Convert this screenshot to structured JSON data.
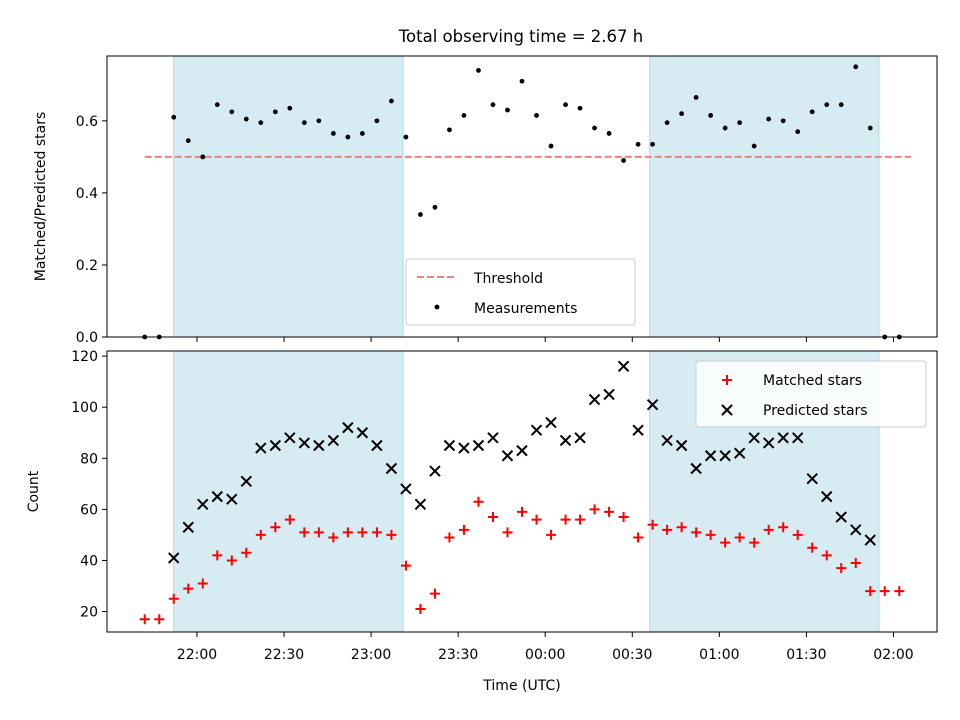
{
  "title": "Total observing time = 2.67 h",
  "colors": {
    "shade": "#add8e6",
    "threshold": "#f08080",
    "matched": "#ff0000",
    "predicted": "#000000",
    "measurement": "#000000"
  },
  "chart_data": [
    {
      "panel": "top",
      "type": "scatter",
      "title": "Total observing time = 2.67 h",
      "xlabel": "",
      "ylabel": "Matched/Predicted stars",
      "xlim": [
        "21:29",
        "02:15"
      ],
      "ylim": [
        0,
        0.78
      ],
      "yticks": [
        0.0,
        0.2,
        0.4,
        0.6
      ],
      "ytick_labels": [
        "0.0",
        "0.2",
        "0.4",
        "0.6"
      ],
      "xticks": [
        "22:00",
        "22:30",
        "23:00",
        "23:30",
        "00:00",
        "00:30",
        "01:00",
        "01:30",
        "02:00"
      ],
      "legend_position": "lower center",
      "threshold": {
        "name": "Threshold",
        "value": 0.5,
        "x_range": [
          "21:42",
          "02:06"
        ]
      },
      "shaded_intervals": [
        [
          "21:52",
          "23:11"
        ],
        [
          "00:36",
          "01:55"
        ]
      ],
      "series": [
        {
          "name": "Measurements",
          "points": [
            [
              "21:42",
              0.0
            ],
            [
              "21:47",
              0.0
            ],
            [
              "21:52",
              0.61
            ],
            [
              "21:57",
              0.545
            ],
            [
              "22:02",
              0.5
            ],
            [
              "22:07",
              0.645
            ],
            [
              "22:12",
              0.625
            ],
            [
              "22:17",
              0.605
            ],
            [
              "22:22",
              0.595
            ],
            [
              "22:27",
              0.625
            ],
            [
              "22:32",
              0.635
            ],
            [
              "22:37",
              0.595
            ],
            [
              "22:42",
              0.6
            ],
            [
              "22:47",
              0.565
            ],
            [
              "22:52",
              0.555
            ],
            [
              "22:57",
              0.565
            ],
            [
              "23:02",
              0.6
            ],
            [
              "23:07",
              0.655
            ],
            [
              "23:12",
              0.555
            ],
            [
              "23:17",
              0.34
            ],
            [
              "23:22",
              0.36
            ],
            [
              "23:27",
              0.575
            ],
            [
              "23:32",
              0.615
            ],
            [
              "23:37",
              0.74
            ],
            [
              "23:42",
              0.645
            ],
            [
              "23:47",
              0.63
            ],
            [
              "23:52",
              0.71
            ],
            [
              "23:57",
              0.615
            ],
            [
              "00:02",
              0.53
            ],
            [
              "00:07",
              0.645
            ],
            [
              "00:12",
              0.635
            ],
            [
              "00:17",
              0.58
            ],
            [
              "00:22",
              0.565
            ],
            [
              "00:27",
              0.49
            ],
            [
              "00:32",
              0.535
            ],
            [
              "00:37",
              0.535
            ],
            [
              "00:42",
              0.595
            ],
            [
              "00:47",
              0.62
            ],
            [
              "00:52",
              0.665
            ],
            [
              "00:57",
              0.615
            ],
            [
              "01:02",
              0.58
            ],
            [
              "01:07",
              0.595
            ],
            [
              "01:12",
              0.53
            ],
            [
              "01:17",
              0.605
            ],
            [
              "01:22",
              0.6
            ],
            [
              "01:27",
              0.57
            ],
            [
              "01:32",
              0.625
            ],
            [
              "01:37",
              0.645
            ],
            [
              "01:42",
              0.645
            ],
            [
              "01:47",
              0.75
            ],
            [
              "01:52",
              0.58
            ],
            [
              "01:57",
              0.0
            ],
            [
              "02:02",
              0.0
            ]
          ]
        }
      ]
    },
    {
      "panel": "bottom",
      "type": "scatter",
      "title": "",
      "xlabel": "Time (UTC)",
      "ylabel": "Count",
      "xlim": [
        "21:29",
        "02:15"
      ],
      "ylim": [
        12,
        122
      ],
      "yticks": [
        20,
        40,
        60,
        80,
        100,
        120
      ],
      "xticks": [
        "22:00",
        "22:30",
        "23:00",
        "23:30",
        "00:00",
        "00:30",
        "01:00",
        "01:30",
        "02:00"
      ],
      "legend_position": "upper right",
      "shaded_intervals": [
        [
          "21:52",
          "23:11"
        ],
        [
          "00:36",
          "01:55"
        ]
      ],
      "series": [
        {
          "name": "Matched stars",
          "marker": "plus",
          "points": [
            [
              "21:42",
              17
            ],
            [
              "21:47",
              17
            ],
            [
              "21:52",
              25
            ],
            [
              "21:57",
              29
            ],
            [
              "22:02",
              31
            ],
            [
              "22:07",
              42
            ],
            [
              "22:12",
              40
            ],
            [
              "22:17",
              43
            ],
            [
              "22:22",
              50
            ],
            [
              "22:27",
              53
            ],
            [
              "22:32",
              56
            ],
            [
              "22:37",
              51
            ],
            [
              "22:42",
              51
            ],
            [
              "22:47",
              49
            ],
            [
              "22:52",
              51
            ],
            [
              "22:57",
              51
            ],
            [
              "23:02",
              51
            ],
            [
              "23:07",
              50
            ],
            [
              "23:12",
              38
            ],
            [
              "23:17",
              21
            ],
            [
              "23:22",
              27
            ],
            [
              "23:27",
              49
            ],
            [
              "23:32",
              52
            ],
            [
              "23:37",
              63
            ],
            [
              "23:42",
              57
            ],
            [
              "23:47",
              51
            ],
            [
              "23:52",
              59
            ],
            [
              "23:57",
              56
            ],
            [
              "00:02",
              50
            ],
            [
              "00:07",
              56
            ],
            [
              "00:12",
              56
            ],
            [
              "00:17",
              60
            ],
            [
              "00:22",
              59
            ],
            [
              "00:27",
              57
            ],
            [
              "00:32",
              49
            ],
            [
              "00:37",
              54
            ],
            [
              "00:42",
              52
            ],
            [
              "00:47",
              53
            ],
            [
              "00:52",
              51
            ],
            [
              "00:57",
              50
            ],
            [
              "01:02",
              47
            ],
            [
              "01:07",
              49
            ],
            [
              "01:12",
              47
            ],
            [
              "01:17",
              52
            ],
            [
              "01:22",
              53
            ],
            [
              "01:27",
              50
            ],
            [
              "01:32",
              45
            ],
            [
              "01:37",
              42
            ],
            [
              "01:42",
              37
            ],
            [
              "01:47",
              39
            ],
            [
              "01:52",
              28
            ],
            [
              "01:57",
              28
            ],
            [
              "02:02",
              28
            ]
          ]
        },
        {
          "name": "Predicted stars",
          "marker": "x",
          "points": [
            [
              "21:52",
              41
            ],
            [
              "21:57",
              53
            ],
            [
              "22:02",
              62
            ],
            [
              "22:07",
              65
            ],
            [
              "22:12",
              64
            ],
            [
              "22:17",
              71
            ],
            [
              "22:22",
              84
            ],
            [
              "22:27",
              85
            ],
            [
              "22:32",
              88
            ],
            [
              "22:37",
              86
            ],
            [
              "22:42",
              85
            ],
            [
              "22:47",
              87
            ],
            [
              "22:52",
              92
            ],
            [
              "22:57",
              90
            ],
            [
              "23:02",
              85
            ],
            [
              "23:07",
              76
            ],
            [
              "23:12",
              68
            ],
            [
              "23:17",
              62
            ],
            [
              "23:22",
              75
            ],
            [
              "23:27",
              85
            ],
            [
              "23:32",
              84
            ],
            [
              "23:37",
              85
            ],
            [
              "23:42",
              88
            ],
            [
              "23:47",
              81
            ],
            [
              "23:52",
              83
            ],
            [
              "23:57",
              91
            ],
            [
              "00:02",
              94
            ],
            [
              "00:07",
              87
            ],
            [
              "00:12",
              88
            ],
            [
              "00:17",
              103
            ],
            [
              "00:22",
              105
            ],
            [
              "00:27",
              116
            ],
            [
              "00:32",
              91
            ],
            [
              "00:37",
              101
            ],
            [
              "00:42",
              87
            ],
            [
              "00:47",
              85
            ],
            [
              "00:52",
              76
            ],
            [
              "00:57",
              81
            ],
            [
              "01:02",
              81
            ],
            [
              "01:07",
              82
            ],
            [
              "01:12",
              88
            ],
            [
              "01:17",
              86
            ],
            [
              "01:22",
              88
            ],
            [
              "01:27",
              88
            ],
            [
              "01:32",
              72
            ],
            [
              "01:37",
              65
            ],
            [
              "01:42",
              57
            ],
            [
              "01:47",
              52
            ],
            [
              "01:52",
              48
            ]
          ]
        }
      ]
    }
  ]
}
